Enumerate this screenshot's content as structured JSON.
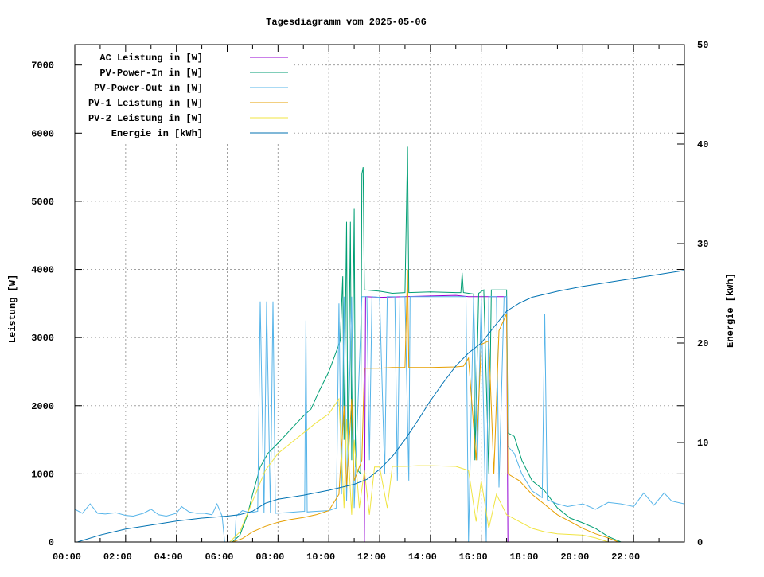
{
  "chart_data": {
    "type": "line",
    "title": "Tagesdiagramm vom 2025-05-06",
    "xlabel": "",
    "ylabel": "Leistung [W]",
    "y2label": "Energie [kWh]",
    "xlim": [
      0,
      24
    ],
    "ylim": [
      0,
      7300
    ],
    "y2lim": [
      0,
      50
    ],
    "grid": true,
    "legend_position": "top-left",
    "x_ticks": [
      {
        "value": 0,
        "label": "00:00"
      },
      {
        "value": 2,
        "label": "02:00"
      },
      {
        "value": 4,
        "label": "04:00"
      },
      {
        "value": 6,
        "label": "06:00"
      },
      {
        "value": 8,
        "label": "08:00"
      },
      {
        "value": 10,
        "label": "10:00"
      },
      {
        "value": 12,
        "label": "12:00"
      },
      {
        "value": 14,
        "label": "14:00"
      },
      {
        "value": 16,
        "label": "16:00"
      },
      {
        "value": 18,
        "label": "18:00"
      },
      {
        "value": 20,
        "label": "20:00"
      },
      {
        "value": 22,
        "label": "22:00"
      }
    ],
    "y_ticks": [
      {
        "value": 0,
        "label": "0"
      },
      {
        "value": 1000,
        "label": "1000"
      },
      {
        "value": 2000,
        "label": "2000"
      },
      {
        "value": 3000,
        "label": "3000"
      },
      {
        "value": 4000,
        "label": "4000"
      },
      {
        "value": 5000,
        "label": "5000"
      },
      {
        "value": 6000,
        "label": "6000"
      },
      {
        "value": 7000,
        "label": "7000"
      }
    ],
    "y2_ticks": [
      {
        "value": 0,
        "label": "0"
      },
      {
        "value": 10,
        "label": "10"
      },
      {
        "value": 20,
        "label": "20"
      },
      {
        "value": 30,
        "label": "30"
      },
      {
        "value": 40,
        "label": "40"
      },
      {
        "value": 50,
        "label": "50"
      }
    ],
    "series": [
      {
        "name": "AC Leistung in [W]",
        "color": "#9400d3",
        "axis": "y",
        "points": [
          [
            11.4,
            0
          ],
          [
            11.45,
            3600
          ],
          [
            12,
            3590
          ],
          [
            13,
            3600
          ],
          [
            14,
            3610
          ],
          [
            15,
            3620
          ],
          [
            15.5,
            3600
          ],
          [
            16.2,
            3600
          ],
          [
            17.0,
            3600
          ],
          [
            17.05,
            0
          ]
        ]
      },
      {
        "name": "PV-Power-In in [W]",
        "color": "#009e73",
        "axis": "y",
        "points": [
          [
            6.2,
            0
          ],
          [
            6.5,
            100
          ],
          [
            6.8,
            400
          ],
          [
            7.0,
            700
          ],
          [
            7.3,
            1100
          ],
          [
            7.6,
            1300
          ],
          [
            8.0,
            1450
          ],
          [
            8.5,
            1650
          ],
          [
            9.0,
            1850
          ],
          [
            9.3,
            1950
          ],
          [
            9.6,
            2200
          ],
          [
            10.0,
            2500
          ],
          [
            10.3,
            2800
          ],
          [
            10.45,
            2950
          ],
          [
            10.55,
            3900
          ],
          [
            10.6,
            1500
          ],
          [
            10.7,
            4700
          ],
          [
            10.75,
            1100
          ],
          [
            10.85,
            4700
          ],
          [
            10.9,
            1200
          ],
          [
            11.0,
            4900
          ],
          [
            11.05,
            1100
          ],
          [
            11.25,
            1000
          ],
          [
            11.3,
            5400
          ],
          [
            11.35,
            5500
          ],
          [
            11.4,
            3700
          ],
          [
            12.0,
            3680
          ],
          [
            12.5,
            3650
          ],
          [
            13.0,
            3660
          ],
          [
            13.1,
            5800
          ],
          [
            13.15,
            3660
          ],
          [
            14.0,
            3670
          ],
          [
            15.0,
            3660
          ],
          [
            15.2,
            3660
          ],
          [
            15.25,
            3950
          ],
          [
            15.3,
            3660
          ],
          [
            15.5,
            3650
          ],
          [
            15.7,
            3640
          ],
          [
            15.75,
            1200
          ],
          [
            15.9,
            3650
          ],
          [
            16.1,
            3700
          ],
          [
            16.3,
            1000
          ],
          [
            16.4,
            3700
          ],
          [
            16.6,
            3700
          ],
          [
            16.9,
            3700
          ],
          [
            17.0,
            3700
          ],
          [
            17.05,
            1600
          ],
          [
            17.3,
            1550
          ],
          [
            17.6,
            1200
          ],
          [
            18.0,
            900
          ],
          [
            18.5,
            750
          ],
          [
            19.0,
            500
          ],
          [
            19.5,
            350
          ],
          [
            20.0,
            280
          ],
          [
            20.5,
            200
          ],
          [
            21.0,
            80
          ],
          [
            21.5,
            0
          ]
        ]
      },
      {
        "name": "PV-Power-Out in [W]",
        "color": "#56b4e9",
        "axis": "y",
        "points": [
          [
            0,
            480
          ],
          [
            0.3,
            420
          ],
          [
            0.6,
            560
          ],
          [
            0.9,
            420
          ],
          [
            1.2,
            410
          ],
          [
            1.6,
            430
          ],
          [
            2.0,
            390
          ],
          [
            2.3,
            380
          ],
          [
            2.7,
            420
          ],
          [
            3.0,
            480
          ],
          [
            3.3,
            400
          ],
          [
            3.6,
            380
          ],
          [
            4.0,
            420
          ],
          [
            4.2,
            520
          ],
          [
            4.5,
            440
          ],
          [
            4.8,
            420
          ],
          [
            5.1,
            420
          ],
          [
            5.4,
            400
          ],
          [
            5.6,
            560
          ],
          [
            5.8,
            380
          ],
          [
            5.9,
            0
          ],
          [
            6.3,
            0
          ],
          [
            6.35,
            380
          ],
          [
            6.6,
            460
          ],
          [
            6.9,
            430
          ],
          [
            7.2,
            450
          ],
          [
            7.3,
            3530
          ],
          [
            7.45,
            420
          ],
          [
            7.55,
            3530
          ],
          [
            7.7,
            430
          ],
          [
            7.8,
            3530
          ],
          [
            7.9,
            420
          ],
          [
            8.3,
            430
          ],
          [
            8.7,
            440
          ],
          [
            9.05,
            450
          ],
          [
            9.1,
            3250
          ],
          [
            9.15,
            440
          ],
          [
            9.5,
            450
          ],
          [
            10.0,
            460
          ],
          [
            10.3,
            500
          ],
          [
            10.4,
            3500
          ],
          [
            10.5,
            700
          ],
          [
            10.6,
            3600
          ],
          [
            10.7,
            600
          ],
          [
            10.9,
            3600
          ],
          [
            11.0,
            500
          ],
          [
            11.3,
            3600
          ],
          [
            11.4,
            3600
          ],
          [
            11.5,
            3600
          ],
          [
            11.6,
            1200
          ],
          [
            11.7,
            3600
          ],
          [
            12.0,
            3590
          ],
          [
            12.2,
            1000
          ],
          [
            12.3,
            3600
          ],
          [
            12.6,
            3600
          ],
          [
            12.7,
            900
          ],
          [
            12.8,
            3600
          ],
          [
            13.0,
            3600
          ],
          [
            13.15,
            900
          ],
          [
            13.2,
            3600
          ],
          [
            14.0,
            3600
          ],
          [
            15.0,
            3600
          ],
          [
            15.4,
            3600
          ],
          [
            15.5,
            0
          ],
          [
            15.7,
            3600
          ],
          [
            15.85,
            1200
          ],
          [
            16.0,
            3600
          ],
          [
            16.2,
            0
          ],
          [
            16.3,
            3600
          ],
          [
            16.6,
            3600
          ],
          [
            16.7,
            800
          ],
          [
            16.9,
            3600
          ],
          [
            17.0,
            3600
          ],
          [
            17.05,
            1400
          ],
          [
            17.3,
            1300
          ],
          [
            17.6,
            1000
          ],
          [
            18.0,
            750
          ],
          [
            18.4,
            650
          ],
          [
            18.5,
            3350
          ],
          [
            18.6,
            620
          ],
          [
            19.0,
            560
          ],
          [
            19.4,
            520
          ],
          [
            20.0,
            560
          ],
          [
            20.5,
            480
          ],
          [
            21.0,
            580
          ],
          [
            21.5,
            560
          ],
          [
            22.0,
            520
          ],
          [
            22.4,
            720
          ],
          [
            22.8,
            540
          ],
          [
            23.2,
            720
          ],
          [
            23.5,
            600
          ],
          [
            24.0,
            560
          ]
        ]
      },
      {
        "name": "PV-1 Leistung in [W]",
        "color": "#e69f00",
        "axis": "y",
        "points": [
          [
            6.2,
            0
          ],
          [
            6.6,
            50
          ],
          [
            7.0,
            150
          ],
          [
            7.5,
            230
          ],
          [
            8.0,
            290
          ],
          [
            8.5,
            330
          ],
          [
            9.0,
            360
          ],
          [
            9.5,
            400
          ],
          [
            10.0,
            460
          ],
          [
            10.4,
            700
          ],
          [
            10.6,
            2000
          ],
          [
            10.7,
            800
          ],
          [
            10.9,
            2100
          ],
          [
            11.0,
            900
          ],
          [
            11.3,
            1200
          ],
          [
            11.4,
            2550
          ],
          [
            12.0,
            2550
          ],
          [
            12.5,
            2560
          ],
          [
            13.0,
            2560
          ],
          [
            13.1,
            4000
          ],
          [
            13.15,
            2560
          ],
          [
            14.0,
            2560
          ],
          [
            15.0,
            2570
          ],
          [
            15.3,
            2580
          ],
          [
            15.5,
            2700
          ],
          [
            15.8,
            1200
          ],
          [
            16.0,
            2900
          ],
          [
            16.3,
            2950
          ],
          [
            16.5,
            1000
          ],
          [
            16.7,
            3100
          ],
          [
            17.0,
            3350
          ],
          [
            17.05,
            1000
          ],
          [
            17.5,
            900
          ],
          [
            18.0,
            700
          ],
          [
            18.5,
            550
          ],
          [
            19.0,
            400
          ],
          [
            19.5,
            300
          ],
          [
            20.0,
            200
          ],
          [
            20.5,
            120
          ],
          [
            21.0,
            60
          ],
          [
            21.4,
            0
          ]
        ]
      },
      {
        "name": "PV-2 Leistung in [W]",
        "color": "#f0e442",
        "axis": "y",
        "points": [
          [
            6.1,
            0
          ],
          [
            6.5,
            150
          ],
          [
            7.0,
            600
          ],
          [
            7.5,
            1050
          ],
          [
            8.0,
            1300
          ],
          [
            8.5,
            1450
          ],
          [
            9.0,
            1600
          ],
          [
            9.5,
            1750
          ],
          [
            10.0,
            1880
          ],
          [
            10.4,
            2100
          ],
          [
            10.6,
            500
          ],
          [
            10.7,
            1800
          ],
          [
            10.9,
            400
          ],
          [
            11.0,
            1500
          ],
          [
            11.2,
            500
          ],
          [
            11.4,
            1050
          ],
          [
            11.6,
            400
          ],
          [
            11.8,
            1100
          ],
          [
            12.0,
            1100
          ],
          [
            12.3,
            500
          ],
          [
            12.5,
            1110
          ],
          [
            13.0,
            1110
          ],
          [
            13.5,
            1120
          ],
          [
            14.0,
            1120
          ],
          [
            15.0,
            1110
          ],
          [
            15.5,
            1050
          ],
          [
            15.8,
            300
          ],
          [
            16.0,
            900
          ],
          [
            16.3,
            200
          ],
          [
            16.6,
            700
          ],
          [
            17.0,
            400
          ],
          [
            17.5,
            300
          ],
          [
            18.0,
            200
          ],
          [
            18.5,
            150
          ],
          [
            19.0,
            120
          ],
          [
            20.0,
            100
          ],
          [
            20.5,
            60
          ],
          [
            21.0,
            0
          ]
        ]
      },
      {
        "name": "Energie in [kWh]",
        "color": "#0072b2",
        "axis": "y2",
        "points": [
          [
            0.1,
            0
          ],
          [
            1,
            0.7
          ],
          [
            2,
            1.3
          ],
          [
            3,
            1.7
          ],
          [
            4,
            2.1
          ],
          [
            5,
            2.4
          ],
          [
            6,
            2.6
          ],
          [
            6.5,
            2.75
          ],
          [
            7,
            3.1
          ],
          [
            7.5,
            3.9
          ],
          [
            8,
            4.3
          ],
          [
            9,
            4.7
          ],
          [
            10,
            5.2
          ],
          [
            11,
            5.8
          ],
          [
            11.5,
            6.3
          ],
          [
            12,
            7.3
          ],
          [
            12.5,
            8.6
          ],
          [
            13,
            10.3
          ],
          [
            13.5,
            12.2
          ],
          [
            14,
            14.2
          ],
          [
            14.5,
            16.0
          ],
          [
            15,
            17.7
          ],
          [
            15.5,
            19.0
          ],
          [
            16,
            20.0
          ],
          [
            16.5,
            21.6
          ],
          [
            17,
            23.2
          ],
          [
            17.5,
            24.0
          ],
          [
            18,
            24.6
          ],
          [
            19,
            25.2
          ],
          [
            20,
            25.7
          ],
          [
            21,
            26.1
          ],
          [
            22,
            26.5
          ],
          [
            23,
            26.9
          ],
          [
            24,
            27.3
          ]
        ]
      }
    ]
  }
}
